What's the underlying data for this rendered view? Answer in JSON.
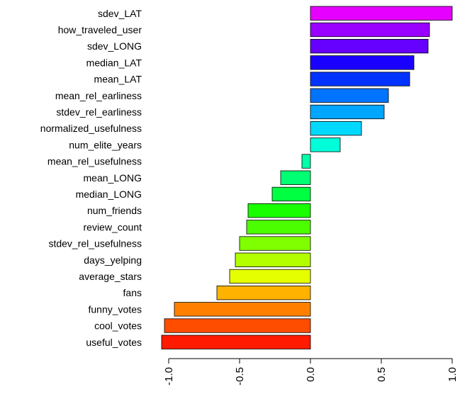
{
  "chart_data": {
    "type": "bar",
    "orientation": "horizontal",
    "title": "",
    "xlabel": "",
    "ylabel": "",
    "xlim": [
      -1.0,
      1.0
    ],
    "x_ticks": [
      "-1.0",
      "-0.5",
      "0.0",
      "0.5",
      "1.0"
    ],
    "grid": false,
    "legend": "none",
    "categories": [
      "sdev_LAT",
      "how_traveled_user",
      "sdev_LONG",
      "median_LAT",
      "mean_LAT",
      "mean_rel_earliness",
      "stdev_rel_earliness",
      "normalized_usefulness",
      "num_elite_years",
      "mean_rel_usefulness",
      "mean_LONG",
      "median_LONG",
      "num_friends",
      "review_count",
      "stdev_rel_usefulness",
      "days_yelping",
      "average_stars",
      "fans",
      "funny_votes",
      "cool_votes",
      "useful_votes"
    ],
    "values": [
      1.0,
      0.84,
      0.83,
      0.73,
      0.7,
      0.55,
      0.52,
      0.36,
      0.21,
      -0.06,
      -0.21,
      -0.27,
      -0.44,
      -0.45,
      -0.5,
      -0.53,
      -0.57,
      -0.66,
      -0.96,
      -1.03,
      -1.05
    ],
    "colors": [
      "#e600ff",
      "#9900ff",
      "#6600ff",
      "#1a00ff",
      "#0033ff",
      "#0073ff",
      "#00a6ff",
      "#00d9ff",
      "#00ffd9",
      "#00ffa6",
      "#00ff73",
      "#00ff40",
      "#1aff00",
      "#4cff00",
      "#80ff00",
      "#b3ff00",
      "#e6ff00",
      "#ffb300",
      "#ff8000",
      "#ff4d00",
      "#ff1a00"
    ]
  }
}
